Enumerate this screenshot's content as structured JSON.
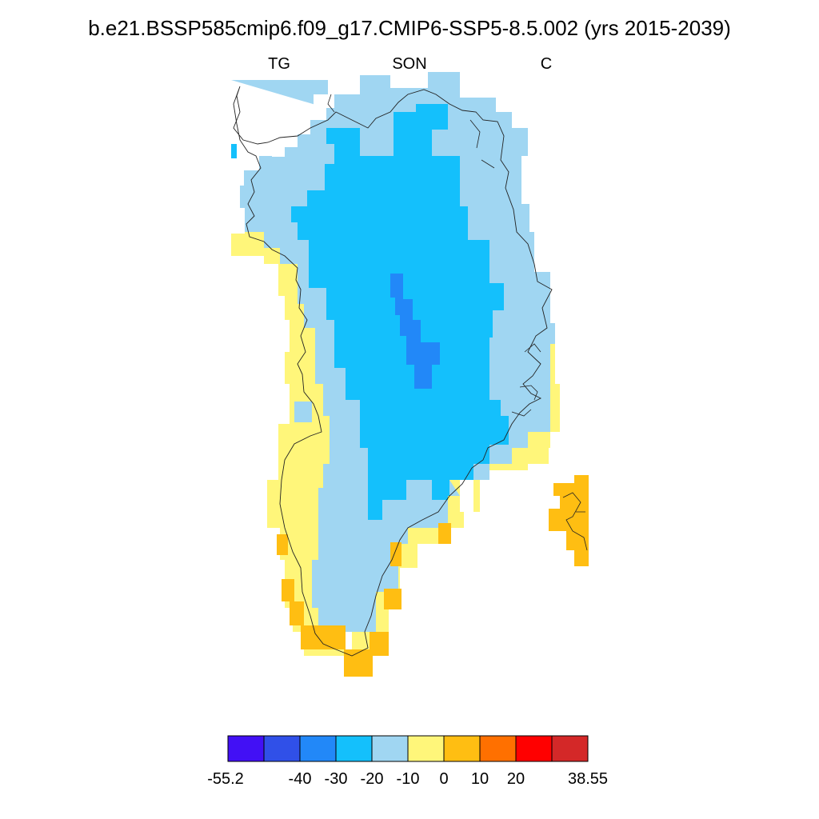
{
  "title": "b.e21.BSSP585cmip6.f09_g17.CMIP6-SSP5-8.5.002 (yrs 2015-2039)",
  "left_label": "TG",
  "center_label": "SON",
  "right_label": "C",
  "colorbar": {
    "bins": [
      {
        "color": "#4210f5"
      },
      {
        "color": "#3050e8"
      },
      {
        "color": "#2288f8"
      },
      {
        "color": "#14c0fc"
      },
      {
        "color": "#a0d6f2"
      },
      {
        "color": "#fff67a"
      },
      {
        "color": "#ffbe12"
      },
      {
        "color": "#ff7000"
      },
      {
        "color": "#ff0000"
      },
      {
        "color": "#d42828"
      }
    ],
    "labels": [
      "-55.2",
      "-40",
      "-30",
      "-20",
      "-10",
      "0",
      "10",
      "20",
      "38.55"
    ]
  }
}
